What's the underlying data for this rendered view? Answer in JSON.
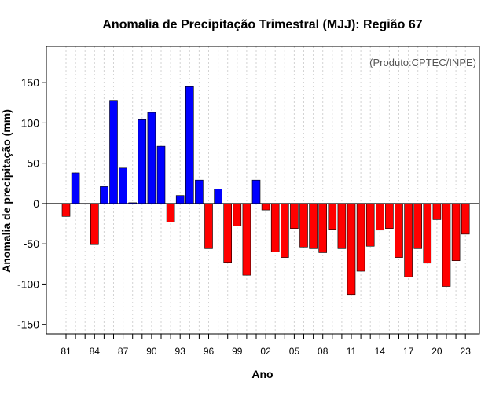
{
  "chart_data": {
    "type": "bar",
    "title": "Anomalia de Precipitação Trimestral (MJJ): Região 67",
    "xlabel": "Ano",
    "ylabel": "Anomalia de precipitação (mm)",
    "credit": "(Produto:CPTEC/INPE)",
    "ylim": [
      -162,
      195
    ],
    "yticks": [
      -150,
      -100,
      -50,
      0,
      50,
      100,
      150
    ],
    "xtick_labels": [
      "81",
      "84",
      "87",
      "90",
      "93",
      "96",
      "99",
      "02",
      "05",
      "08",
      "11",
      "14",
      "17",
      "20",
      "23"
    ],
    "grid": "vertical dotted",
    "colors": {
      "positive": "#0000ff",
      "negative": "#ff0000",
      "grid": "#d3d3d3"
    },
    "categories": [
      1981,
      1982,
      1983,
      1984,
      1985,
      1986,
      1987,
      1988,
      1989,
      1990,
      1991,
      1992,
      1993,
      1994,
      1995,
      1996,
      1997,
      1998,
      1999,
      2000,
      2001,
      2002,
      2003,
      2004,
      2005,
      2006,
      2007,
      2008,
      2009,
      2010,
      2011,
      2012,
      2013,
      2014,
      2015,
      2016,
      2017,
      2018,
      2019,
      2020,
      2021,
      2022,
      2023
    ],
    "values": [
      -16,
      38,
      0,
      -51,
      21,
      128,
      44,
      1,
      104,
      113,
      71,
      -23,
      10,
      145,
      29,
      -56,
      18,
      -73,
      -28,
      -89,
      29,
      -8,
      -60,
      -67,
      -31,
      -54,
      -56,
      -61,
      -32,
      -56,
      -113,
      -84,
      -53,
      -33,
      -31,
      -67,
      -91,
      -56,
      -74,
      -20,
      -103,
      -71,
      -38
    ]
  }
}
